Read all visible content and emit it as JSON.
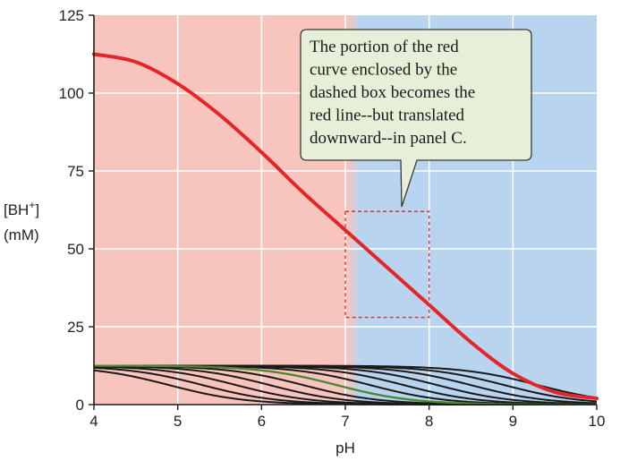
{
  "chart_data": {
    "type": "line",
    "xlabel": "pH",
    "ylabel": [
      "[BH",
      "+",
      "]",
      "(mM)"
    ],
    "xlim": [
      4,
      10
    ],
    "ylim": [
      0,
      125
    ],
    "x_ticks": [
      4,
      5,
      6,
      7,
      8,
      9,
      10
    ],
    "y_ticks": [
      0,
      25,
      50,
      75,
      100,
      125
    ],
    "grid": true,
    "background_regions": [
      {
        "x_from": 4,
        "x_to": 7.1,
        "color": "#f7c5bd"
      },
      {
        "x_from": 7.1,
        "x_to": 10,
        "color": "#b9d4ee"
      }
    ],
    "series": [
      {
        "color": "#e3262a",
        "x": [
          4.0,
          4.5,
          5.0,
          5.5,
          6.0,
          6.5,
          7.0,
          7.5,
          8.0,
          8.5,
          9.0,
          9.5,
          10.0
        ],
        "y": [
          112.5,
          110,
          103,
          93,
          81,
          68,
          56,
          44,
          32,
          20,
          10,
          4,
          2
        ]
      }
    ],
    "black_curve_midpoints": [
      4.9,
      5.3,
      5.7,
      6.1,
      6.5,
      6.9,
      7.3,
      7.7,
      8.1,
      8.5,
      8.9,
      9.3
    ],
    "green_curve_midpoint": 6.9,
    "family_plateau": 12.5,
    "family_colors": {
      "black": "#1a1a1a",
      "green": "#4a8a2c"
    },
    "dashed_box": {
      "x_from": 7.0,
      "x_to": 8.0,
      "y_from": 28,
      "y_to": 62,
      "color": "#d8333a"
    },
    "annotation": {
      "lines": [
        "The portion of the red",
        "curve enclosed by the",
        "dashed box becomes the",
        "red line--but translated",
        "downward--in panel C."
      ],
      "background": "#e6f0d9"
    }
  }
}
